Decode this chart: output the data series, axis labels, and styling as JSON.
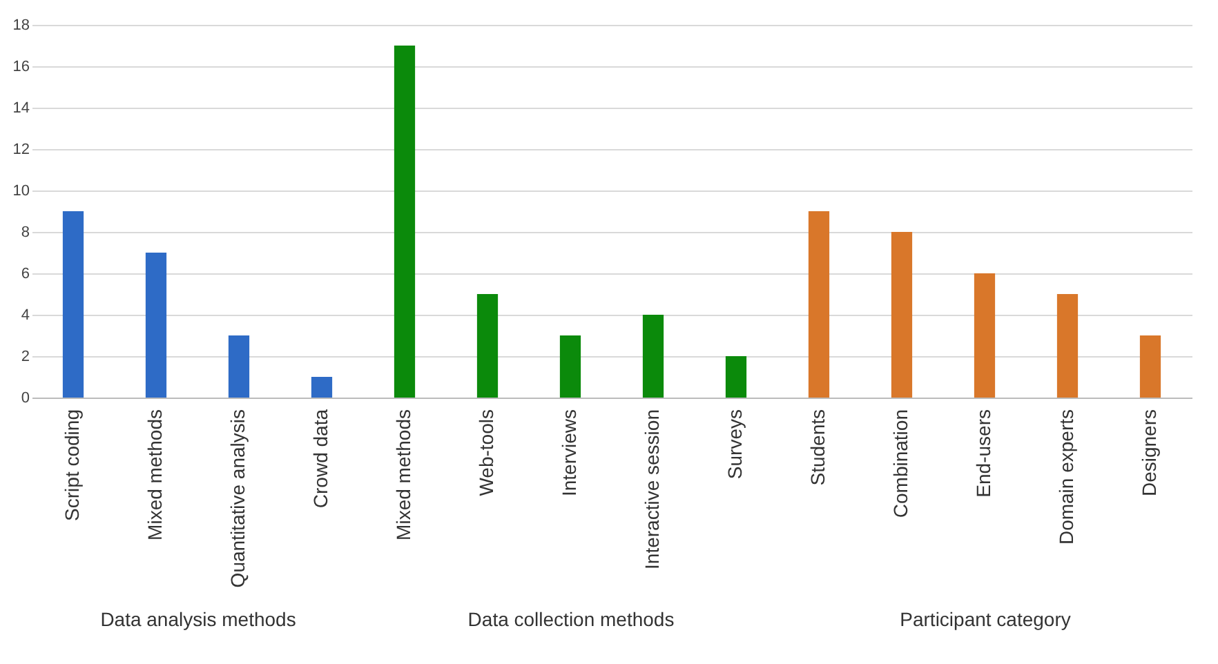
{
  "chart_data": {
    "type": "bar",
    "categories": [
      "Script coding",
      "Mixed methods",
      "Quantitative analysis",
      "Crowd data",
      "Mixed methods",
      "Web-tools",
      "Interviews",
      "Interactive session",
      "Surveys",
      "Students",
      "Combination",
      "End-users",
      "Domain experts",
      "Designers"
    ],
    "series": [
      {
        "color": "#2e6bc6",
        "values": [
          9,
          7,
          3,
          1,
          null,
          null,
          null,
          null,
          null,
          null,
          null,
          null,
          null,
          null
        ]
      },
      {
        "color": "#0b8a0b",
        "values": [
          null,
          null,
          null,
          null,
          17,
          5,
          3,
          4,
          2,
          null,
          null,
          null,
          null,
          null
        ]
      },
      {
        "color": "#d9772a",
        "values": [
          null,
          null,
          null,
          null,
          null,
          null,
          null,
          null,
          null,
          9,
          8,
          6,
          5,
          3
        ]
      }
    ],
    "annotations": [
      "Data analysis methods",
      "Data collection methods",
      "Participant category"
    ],
    "ylim": [
      0,
      18
    ],
    "yticks": [
      0,
      2,
      4,
      6,
      8,
      10,
      12,
      14,
      16,
      18
    ],
    "grid": "y"
  }
}
